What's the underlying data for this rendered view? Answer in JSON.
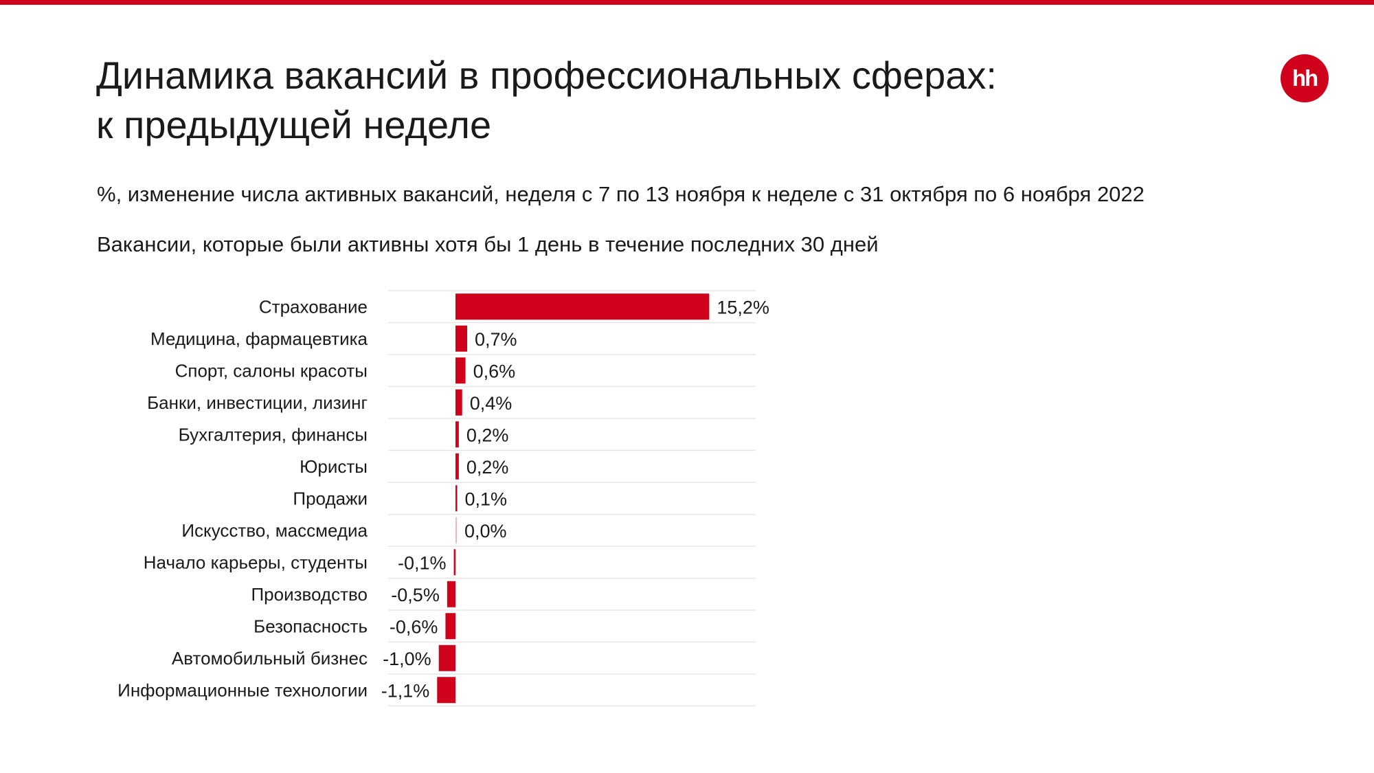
{
  "header": {
    "title_line1": "Динамика вакансий в профессиональных сферах:",
    "title_line2": "к предыдущей неделе",
    "subtitle": "%, изменение числа активных вакансий, неделя с 7 по 13 ноября к неделе с 31 октября по 6 ноября 2022",
    "note": "Вакансии, которые были активны хотя бы 1 день в течение последних 30 дней"
  },
  "logo": {
    "text": "hh",
    "color": "#d0021b"
  },
  "colors": {
    "accent": "#d0021b",
    "zero_bar": "#e8b9c0",
    "grid": "#e6e6e6"
  },
  "chart_data": {
    "type": "bar",
    "orientation": "horizontal",
    "categories": [
      "Страхование",
      "Медицина, фармацевтика",
      "Спорт, салоны красоты",
      "Банки, инвестиции, лизинг",
      "Бухгалтерия, финансы",
      "Юристы",
      "Продажи",
      "Искусство, массмедиа",
      "Начало карьеры, студенты",
      "Производство",
      "Безопасность",
      "Автомобильный бизнес",
      "Информационные технологии"
    ],
    "values": [
      15.2,
      0.7,
      0.6,
      0.4,
      0.2,
      0.2,
      0.1,
      0.0,
      -0.1,
      -0.5,
      -0.6,
      -1.0,
      -1.1
    ],
    "value_labels": [
      "15,2%",
      "0,7%",
      "0,6%",
      "0,4%",
      "0,2%",
      "0,2%",
      "0,1%",
      "0,0%",
      "-0,1%",
      "-0,5%",
      "-0,6%",
      "-1,0%",
      "-1,1%"
    ],
    "unit": "%",
    "grid": false
  }
}
